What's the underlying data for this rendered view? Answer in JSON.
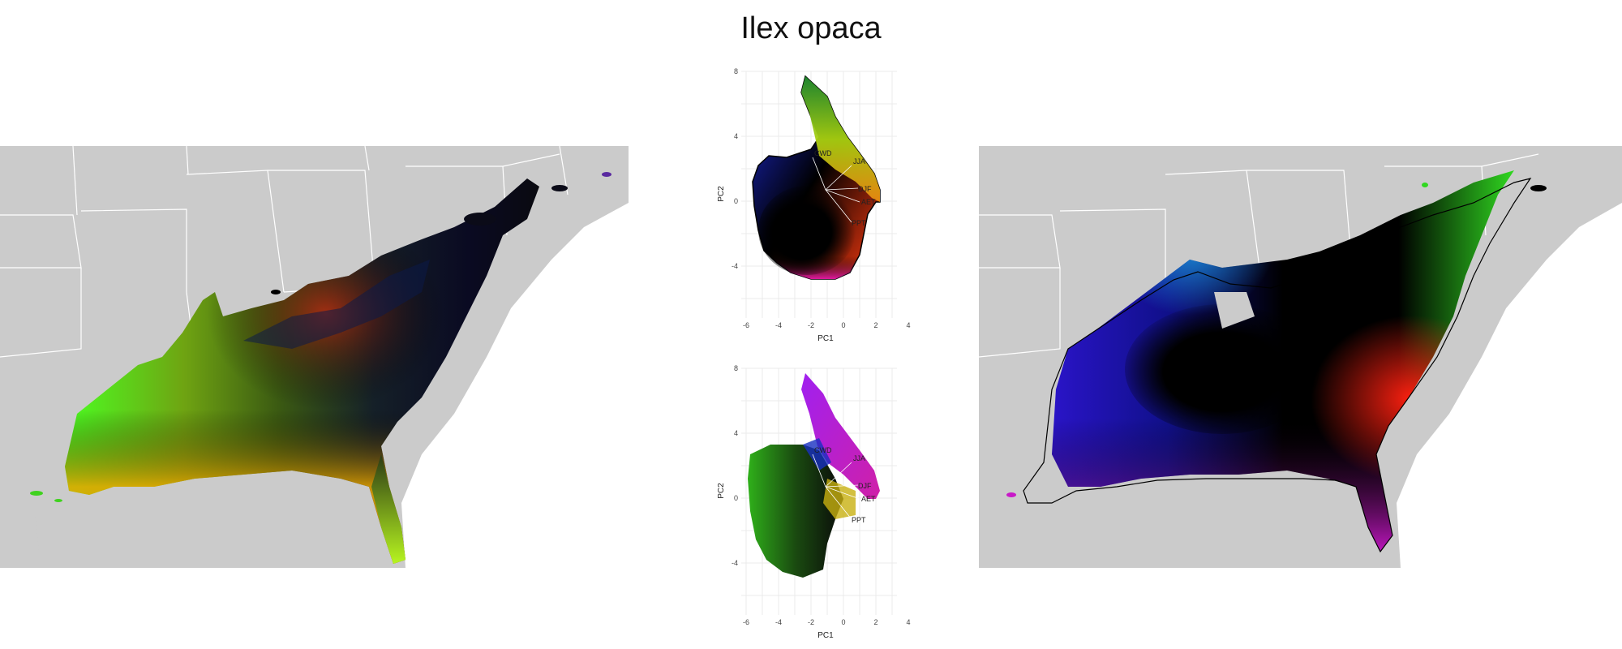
{
  "title": "Ilex opaca",
  "pca_top": {
    "xlabel": "PC1",
    "ylabel": "PC2",
    "xticks": [
      "-6",
      "-4",
      "-2",
      "0",
      "2",
      "4"
    ],
    "yticks": [
      "8",
      "4",
      "0",
      "-4"
    ],
    "vectors": [
      "CWD",
      "JJA",
      "DJF",
      "AET",
      "PPT"
    ]
  },
  "pca_bottom": {
    "xlabel": "PC1",
    "ylabel": "PC2",
    "xticks": [
      "-6",
      "-4",
      "-2",
      "0",
      "2",
      "4"
    ],
    "yticks": [
      "8",
      "4",
      "0",
      "-4"
    ],
    "vectors": [
      "CWD",
      "JJA",
      "DJF",
      "AET",
      "PPT"
    ]
  },
  "colors": {
    "land": "#cbcbcb",
    "borders": "#ffffff",
    "grid": "#ebebeb",
    "outline": "#000000"
  }
}
